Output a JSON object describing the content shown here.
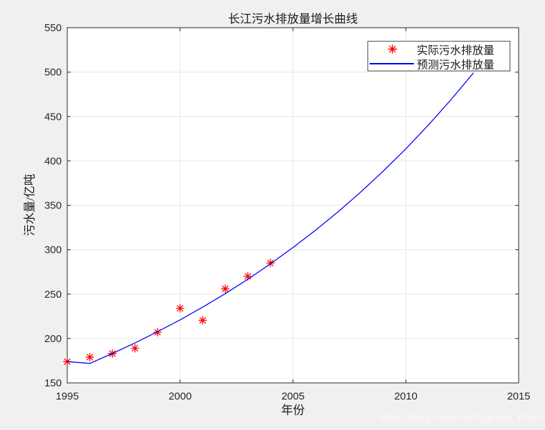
{
  "figure": {
    "title": "长江污水排放量增长曲线",
    "xlabel": "年份",
    "ylabel": "污水量/亿吨",
    "watermark": "https://blog.csdn.net/Fighting_Peter"
  },
  "legend": {
    "position": "top-right",
    "items": [
      {
        "label": "实际污水排放量",
        "marker": "red-asterisk",
        "color": "#ff0000"
      },
      {
        "label": "预测污水排放量",
        "marker": "blue-line",
        "color": "#0000ff"
      }
    ]
  },
  "chart_data": {
    "type": "line",
    "title": "长江污水排放量增长曲线",
    "xlabel": "年份",
    "ylabel": "污水量/亿吨",
    "xlim": [
      1995,
      2015
    ],
    "ylim": [
      150,
      550
    ],
    "xticks": [
      1995,
      2000,
      2005,
      2010,
      2015
    ],
    "yticks": [
      150,
      200,
      250,
      300,
      350,
      400,
      450,
      500,
      550
    ],
    "grid": true,
    "legend_position": "top-right",
    "series": [
      {
        "name": "实际污水排放量",
        "type": "scatter",
        "marker": "asterisk",
        "color": "#ff0000",
        "x": [
          1995,
          1996,
          1997,
          1998,
          1999,
          2000,
          2001,
          2002,
          2003,
          2004
        ],
        "y": [
          174,
          179,
          183,
          189,
          207,
          234,
          220.5,
          256,
          270,
          285
        ]
      },
      {
        "name": "预测污水排放量",
        "type": "line",
        "color": "#0000ff",
        "x": [
          1995,
          1996,
          1997,
          1998,
          1999,
          2000,
          2001,
          2002,
          2003,
          2004,
          2005,
          2006,
          2007,
          2008,
          2009,
          2010,
          2011,
          2012,
          2013
        ],
        "y": [
          174,
          172,
          183.1,
          195.0,
          207.6,
          221.0,
          235.3,
          250.5,
          266.7,
          284.0,
          302.4,
          321.9,
          342.7,
          364.9,
          388.5,
          413.6,
          440.4,
          468.9,
          499.2
        ]
      }
    ]
  },
  "style": {
    "figure_bg": "#f0f0f0",
    "plot_bg": "#ffffff",
    "axis_color": "#262626",
    "grid_color": "#e6e6e6",
    "tick_label_color": "#262626"
  }
}
